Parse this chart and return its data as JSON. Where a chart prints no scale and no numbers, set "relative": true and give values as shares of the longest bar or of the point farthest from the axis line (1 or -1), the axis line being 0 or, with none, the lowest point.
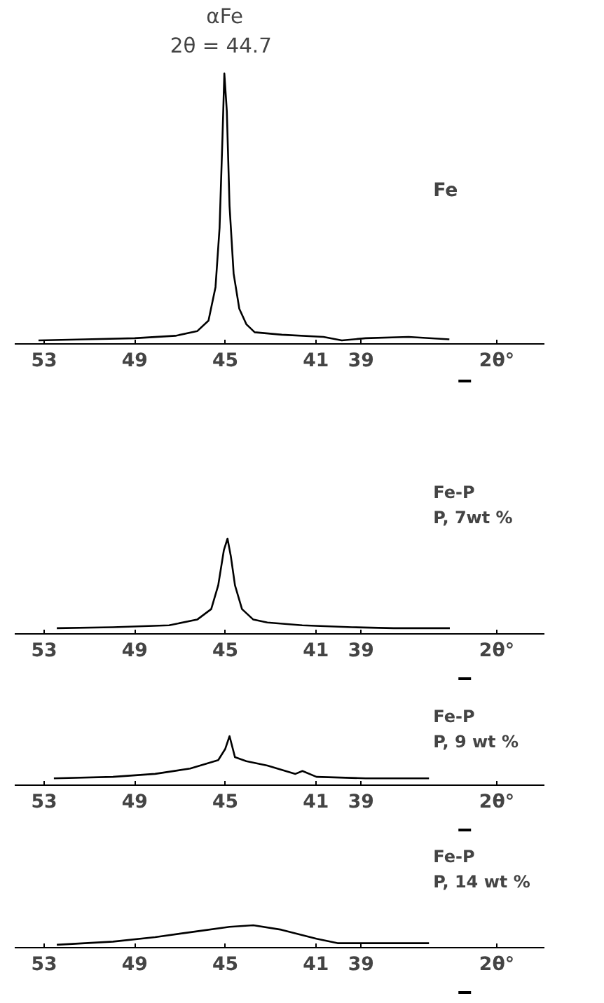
{
  "chart_data": [
    {
      "type": "line",
      "title": "Fe",
      "annotations": [
        "αFe",
        "2θ = 44.7"
      ],
      "relative": true,
      "color": "#000000",
      "xlim": [
        54.3,
        30.9
      ],
      "xticks": [
        53,
        49,
        45,
        41,
        39
      ],
      "xlabel": "2θ°",
      "x": [
        53.25,
        51.2,
        49.0,
        47.2,
        46.24,
        45.74,
        45.43,
        45.25,
        45.12,
        45.04,
        44.93,
        44.81,
        44.63,
        44.38,
        44.07,
        43.7,
        42.5,
        40.66,
        39.85,
        38.8,
        36.9,
        35.1
      ],
      "values": [
        0.013,
        0.017,
        0.021,
        0.03,
        0.047,
        0.086,
        0.21,
        0.43,
        0.77,
        1,
        0.86,
        0.51,
        0.26,
        0.13,
        0.073,
        0.043,
        0.034,
        0.026,
        0.013,
        0.021,
        0.026,
        0.017
      ]
    },
    {
      "type": "line",
      "title": "Fe-P",
      "subtitle": "P, 7wt %",
      "relative": true,
      "color": "#000000",
      "xlim": [
        54.3,
        30.9
      ],
      "xticks": [
        53,
        49,
        45,
        41,
        39
      ],
      "xlabel": "2θ°",
      "x": [
        52.44,
        49.96,
        47.48,
        46.24,
        45.62,
        45.31,
        45.06,
        44.9,
        44.75,
        44.57,
        44.26,
        43.76,
        43.14,
        41.6,
        39.4,
        37.56,
        35.08
      ],
      "values": [
        0.06,
        0.07,
        0.09,
        0.15,
        0.26,
        0.51,
        0.88,
        1,
        0.81,
        0.51,
        0.26,
        0.15,
        0.12,
        0.09,
        0.07,
        0.06,
        0.06
      ]
    },
    {
      "type": "line",
      "title": "Fe-P",
      "subtitle": "P, 9 wt %",
      "relative": true,
      "color": "#000000",
      "xlim": [
        54.3,
        30.9
      ],
      "xticks": [
        53,
        49,
        45,
        41,
        39
      ],
      "xlabel": "2θ°",
      "x": [
        52.57,
        49.96,
        48.1,
        46.55,
        45.31,
        45.0,
        44.81,
        44.57,
        44.07,
        43.14,
        41.9,
        41.59,
        40.97,
        38.8,
        36.0
      ],
      "values": [
        0.14,
        0.17,
        0.23,
        0.34,
        0.51,
        0.74,
        1,
        0.57,
        0.49,
        0.4,
        0.23,
        0.29,
        0.17,
        0.14,
        0.14
      ]
    },
    {
      "type": "line",
      "title": "Fe-P",
      "subtitle": "P, 14 wt %",
      "relative": true,
      "color": "#000000",
      "xlim": [
        54.3,
        30.9
      ],
      "xticks": [
        53,
        49,
        45,
        41,
        39
      ],
      "xlabel": "2θ°",
      "x": [
        52.44,
        49.96,
        48.1,
        46.24,
        44.81,
        43.76,
        42.52,
        40.97,
        40.04,
        38.18,
        36.0
      ],
      "values": [
        0.13,
        0.27,
        0.47,
        0.73,
        0.93,
        1,
        0.8,
        0.4,
        0.2,
        0.2,
        0.2
      ]
    }
  ]
}
